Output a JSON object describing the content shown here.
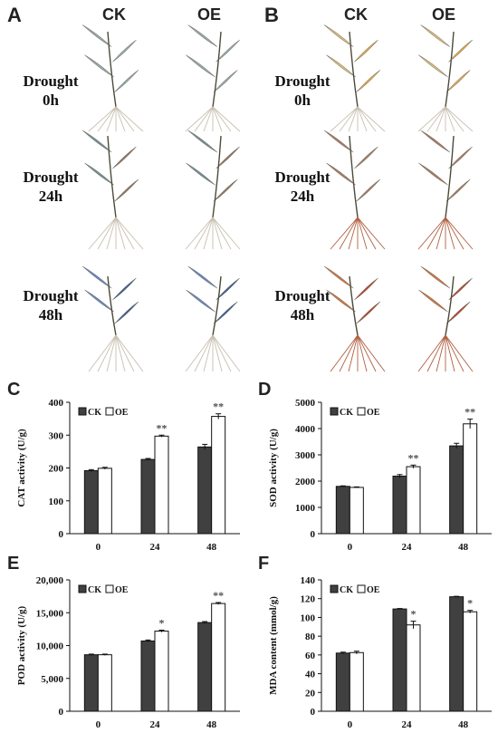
{
  "photo_panels": [
    {
      "letter": "A",
      "columns": [
        "CK",
        "OE"
      ],
      "rows": [
        {
          "line1": "Drought",
          "line2": "0h"
        },
        {
          "line1": "Drought",
          "line2": "24h"
        },
        {
          "line1": "Drought",
          "line2": "48h"
        }
      ]
    },
    {
      "letter": "B",
      "columns": [
        "CK",
        "OE"
      ],
      "rows": [
        {
          "line1": "Drought",
          "line2": "0h"
        },
        {
          "line1": "Drought",
          "line2": "24h"
        },
        {
          "line1": "Drought",
          "line2": "48h"
        }
      ]
    }
  ],
  "plant_colors": {
    "stem_dark": "#4a4a3a",
    "A_0h_leaf": "#8fa3a0",
    "A_24h_leaf": "#6b8590",
    "A_24h_leaf_alt": "#8a6a55",
    "A_48h_leaf": "#2f4f8a",
    "A_48h_leaf_alt": "#5a7fc0",
    "B_0h_leaf": "#e0a040",
    "B_0h_leaf_alt": "#d9b870",
    "B_24h_leaf": "#a07058",
    "B_48h_leaf": "#b03a20",
    "B_48h_leaf_alt": "#d06a30",
    "root": "#c8c0b0",
    "root_red": "#b06040"
  },
  "chart_data": [
    {
      "letter": "C",
      "type": "bar",
      "ylabel": "CAT activity (U/g)",
      "categories": [
        "0",
        "24",
        "48"
      ],
      "ylim": [
        0,
        400
      ],
      "yticks": [
        "0",
        "100",
        "200",
        "300",
        "400"
      ],
      "series": [
        {
          "name": "CK",
          "values": [
            192,
            226,
            264
          ],
          "errors": [
            3,
            3,
            8
          ],
          "color": "#404040"
        },
        {
          "name": "OE",
          "values": [
            199,
            297,
            357
          ],
          "errors": [
            3,
            3,
            8
          ],
          "color": "#ffffff"
        }
      ],
      "annotations": [
        "",
        "**",
        "**"
      ],
      "legend": {
        "position": "top-left",
        "entries": [
          "CK",
          "OE"
        ]
      }
    },
    {
      "letter": "D",
      "type": "bar",
      "ylabel": "SOD activity (U/g)",
      "categories": [
        "0",
        "24",
        "48"
      ],
      "ylim": [
        0,
        5000
      ],
      "yticks": [
        "0",
        "1000",
        "2000",
        "3000",
        "4000",
        "5000"
      ],
      "series": [
        {
          "name": "CK",
          "values": [
            1800,
            2190,
            3340
          ],
          "errors": [
            20,
            60,
            100
          ],
          "color": "#404040"
        },
        {
          "name": "OE",
          "values": [
            1760,
            2550,
            4180
          ],
          "errors": [
            20,
            60,
            180
          ],
          "color": "#ffffff"
        }
      ],
      "annotations": [
        "",
        "**",
        "**"
      ],
      "legend": {
        "position": "top-left",
        "entries": [
          "CK",
          "OE"
        ]
      }
    },
    {
      "letter": "E",
      "type": "bar",
      "ylabel": "POD activity (U/g)",
      "categories": [
        "0",
        "24",
        "48"
      ],
      "ylim": [
        0,
        20000
      ],
      "yticks": [
        "0",
        "5,000",
        "10,000",
        "15,000",
        "20,000"
      ],
      "series": [
        {
          "name": "CK",
          "values": [
            8600,
            10700,
            13500
          ],
          "errors": [
            100,
            150,
            150
          ],
          "color": "#404040"
        },
        {
          "name": "OE",
          "values": [
            8600,
            12200,
            16400
          ],
          "errors": [
            100,
            150,
            150
          ],
          "color": "#ffffff"
        }
      ],
      "annotations": [
        "",
        "*",
        "**"
      ],
      "legend": {
        "position": "top-left",
        "entries": [
          "CK",
          "OE"
        ]
      }
    },
    {
      "letter": "F",
      "type": "bar",
      "ylabel": "MDA content (mmol/g)",
      "categories": [
        "0",
        "24",
        "48"
      ],
      "ylim": [
        0,
        140
      ],
      "yticks": [
        "0",
        "20",
        "40",
        "60",
        "80",
        "100",
        "120",
        "140"
      ],
      "series": [
        {
          "name": "CK",
          "values": [
            62,
            109,
            122
          ],
          "errors": [
            1,
            0.5,
            0.5
          ],
          "color": "#404040"
        },
        {
          "name": "OE",
          "values": [
            62.5,
            92,
            106
          ],
          "errors": [
            1.5,
            4,
            1.5
          ],
          "color": "#ffffff"
        }
      ],
      "annotations": [
        "",
        "*",
        "*"
      ],
      "legend": {
        "position": "top-left",
        "entries": [
          "CK",
          "OE"
        ]
      }
    }
  ]
}
